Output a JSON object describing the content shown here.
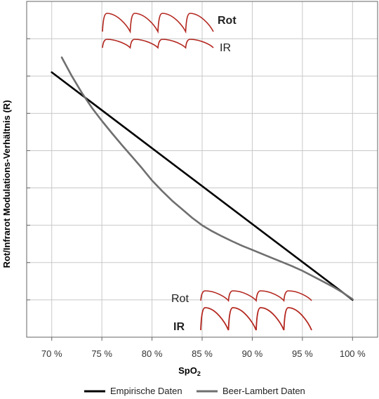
{
  "chart_data": {
    "type": "line",
    "title": "",
    "xlabel_main": "SpO",
    "xlabel_sub": "2",
    "ylabel": "Rot/Infrarot Modulations-Verhältnis (R)",
    "x_ticks": [
      70,
      75,
      80,
      85,
      90,
      95,
      100
    ],
    "x_tick_labels": [
      "70 %",
      "75 %",
      "80 %",
      "85 %",
      "90 %",
      "95 %",
      "100 %"
    ],
    "xlim": [
      67.5,
      102.5
    ],
    "ylim": [
      0,
      9
    ],
    "grid": true,
    "legend_position": "bottom",
    "series": [
      {
        "name": "Empirische Daten",
        "color": "#000000",
        "x": [
          70,
          100
        ],
        "y": [
          7.1,
          1.0
        ]
      },
      {
        "name": "Beer-Lambert Daten",
        "color": "#6f6f6f",
        "x": [
          71,
          72,
          73,
          74,
          75,
          76,
          77,
          78,
          79,
          80,
          81,
          82,
          83,
          84,
          85,
          86,
          87,
          88,
          89,
          90,
          91,
          92,
          93,
          94,
          95,
          96,
          97,
          98,
          99,
          100
        ],
        "y": [
          7.5,
          7.0,
          6.55,
          6.15,
          5.8,
          5.47,
          5.15,
          4.84,
          4.53,
          4.2,
          3.92,
          3.66,
          3.43,
          3.2,
          3.0,
          2.84,
          2.7,
          2.57,
          2.45,
          2.34,
          2.23,
          2.12,
          2.01,
          1.9,
          1.78,
          1.64,
          1.5,
          1.36,
          1.2,
          1.02
        ]
      }
    ]
  },
  "inset_top": {
    "red_label": "Rot",
    "ir_label": "IR",
    "red_color": "#b3261e",
    "ir_color": "#b3261e"
  },
  "inset_bottom": {
    "red_label": "Rot",
    "ir_label": "IR",
    "red_color": "#b3261e",
    "ir_color": "#b3261e"
  },
  "legend": {
    "items": [
      {
        "label": "Empirische Daten",
        "color": "#000000"
      },
      {
        "label": "Beer-Lambert Daten",
        "color": "#6f6f6f"
      }
    ]
  }
}
